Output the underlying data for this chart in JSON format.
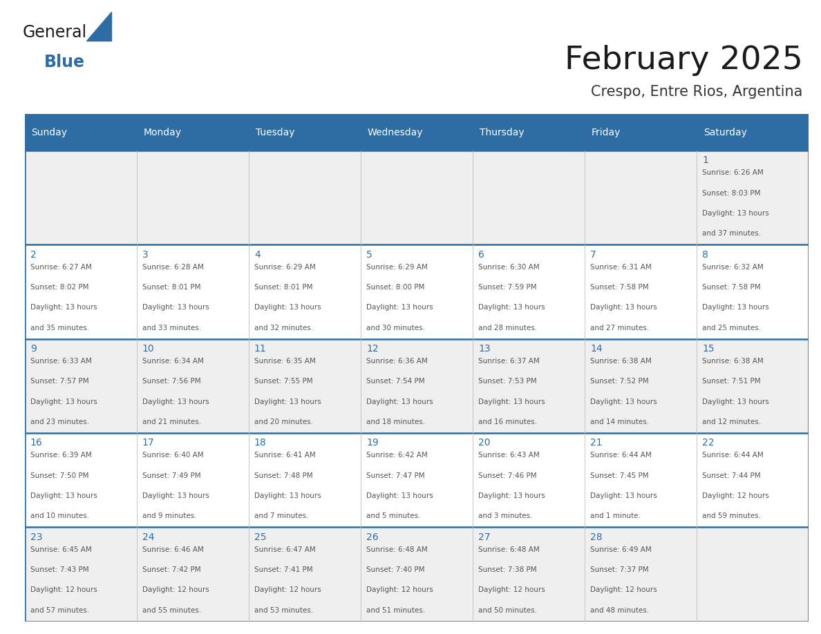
{
  "title": "February 2025",
  "subtitle": "Crespo, Entre Rios, Argentina",
  "days_of_week": [
    "Sunday",
    "Monday",
    "Tuesday",
    "Wednesday",
    "Thursday",
    "Friday",
    "Saturday"
  ],
  "header_bg": "#2E6DA4",
  "header_text": "#FFFFFF",
  "cell_bg_odd": "#EFEFEF",
  "cell_bg_even": "#FFFFFF",
  "grid_line_color": "#2E6DA4",
  "day_number_color": "#2E6DA4",
  "cell_text_color": "#555555",
  "title_color": "#1a1a1a",
  "subtitle_color": "#333333",
  "logo_general_color": "#1a1a1a",
  "logo_blue_color": "#2E6DA4",
  "calendar_data": [
    [
      null,
      null,
      null,
      null,
      null,
      null,
      {
        "day": 1,
        "sunrise": "6:26 AM",
        "sunset": "8:03 PM",
        "daylight": "13 hours and 37 minutes."
      }
    ],
    [
      {
        "day": 2,
        "sunrise": "6:27 AM",
        "sunset": "8:02 PM",
        "daylight": "13 hours and 35 minutes."
      },
      {
        "day": 3,
        "sunrise": "6:28 AM",
        "sunset": "8:01 PM",
        "daylight": "13 hours and 33 minutes."
      },
      {
        "day": 4,
        "sunrise": "6:29 AM",
        "sunset": "8:01 PM",
        "daylight": "13 hours and 32 minutes."
      },
      {
        "day": 5,
        "sunrise": "6:29 AM",
        "sunset": "8:00 PM",
        "daylight": "13 hours and 30 minutes."
      },
      {
        "day": 6,
        "sunrise": "6:30 AM",
        "sunset": "7:59 PM",
        "daylight": "13 hours and 28 minutes."
      },
      {
        "day": 7,
        "sunrise": "6:31 AM",
        "sunset": "7:58 PM",
        "daylight": "13 hours and 27 minutes."
      },
      {
        "day": 8,
        "sunrise": "6:32 AM",
        "sunset": "7:58 PM",
        "daylight": "13 hours and 25 minutes."
      }
    ],
    [
      {
        "day": 9,
        "sunrise": "6:33 AM",
        "sunset": "7:57 PM",
        "daylight": "13 hours and 23 minutes."
      },
      {
        "day": 10,
        "sunrise": "6:34 AM",
        "sunset": "7:56 PM",
        "daylight": "13 hours and 21 minutes."
      },
      {
        "day": 11,
        "sunrise": "6:35 AM",
        "sunset": "7:55 PM",
        "daylight": "13 hours and 20 minutes."
      },
      {
        "day": 12,
        "sunrise": "6:36 AM",
        "sunset": "7:54 PM",
        "daylight": "13 hours and 18 minutes."
      },
      {
        "day": 13,
        "sunrise": "6:37 AM",
        "sunset": "7:53 PM",
        "daylight": "13 hours and 16 minutes."
      },
      {
        "day": 14,
        "sunrise": "6:38 AM",
        "sunset": "7:52 PM",
        "daylight": "13 hours and 14 minutes."
      },
      {
        "day": 15,
        "sunrise": "6:38 AM",
        "sunset": "7:51 PM",
        "daylight": "13 hours and 12 minutes."
      }
    ],
    [
      {
        "day": 16,
        "sunrise": "6:39 AM",
        "sunset": "7:50 PM",
        "daylight": "13 hours and 10 minutes."
      },
      {
        "day": 17,
        "sunrise": "6:40 AM",
        "sunset": "7:49 PM",
        "daylight": "13 hours and 9 minutes."
      },
      {
        "day": 18,
        "sunrise": "6:41 AM",
        "sunset": "7:48 PM",
        "daylight": "13 hours and 7 minutes."
      },
      {
        "day": 19,
        "sunrise": "6:42 AM",
        "sunset": "7:47 PM",
        "daylight": "13 hours and 5 minutes."
      },
      {
        "day": 20,
        "sunrise": "6:43 AM",
        "sunset": "7:46 PM",
        "daylight": "13 hours and 3 minutes."
      },
      {
        "day": 21,
        "sunrise": "6:44 AM",
        "sunset": "7:45 PM",
        "daylight": "13 hours and 1 minute."
      },
      {
        "day": 22,
        "sunrise": "6:44 AM",
        "sunset": "7:44 PM",
        "daylight": "12 hours and 59 minutes."
      }
    ],
    [
      {
        "day": 23,
        "sunrise": "6:45 AM",
        "sunset": "7:43 PM",
        "daylight": "12 hours and 57 minutes."
      },
      {
        "day": 24,
        "sunrise": "6:46 AM",
        "sunset": "7:42 PM",
        "daylight": "12 hours and 55 minutes."
      },
      {
        "day": 25,
        "sunrise": "6:47 AM",
        "sunset": "7:41 PM",
        "daylight": "12 hours and 53 minutes."
      },
      {
        "day": 26,
        "sunrise": "6:48 AM",
        "sunset": "7:40 PM",
        "daylight": "12 hours and 51 minutes."
      },
      {
        "day": 27,
        "sunrise": "6:48 AM",
        "sunset": "7:38 PM",
        "daylight": "12 hours and 50 minutes."
      },
      {
        "day": 28,
        "sunrise": "6:49 AM",
        "sunset": "7:37 PM",
        "daylight": "12 hours and 48 minutes."
      },
      null
    ]
  ],
  "figsize": [
    11.88,
    9.18
  ],
  "dpi": 100
}
